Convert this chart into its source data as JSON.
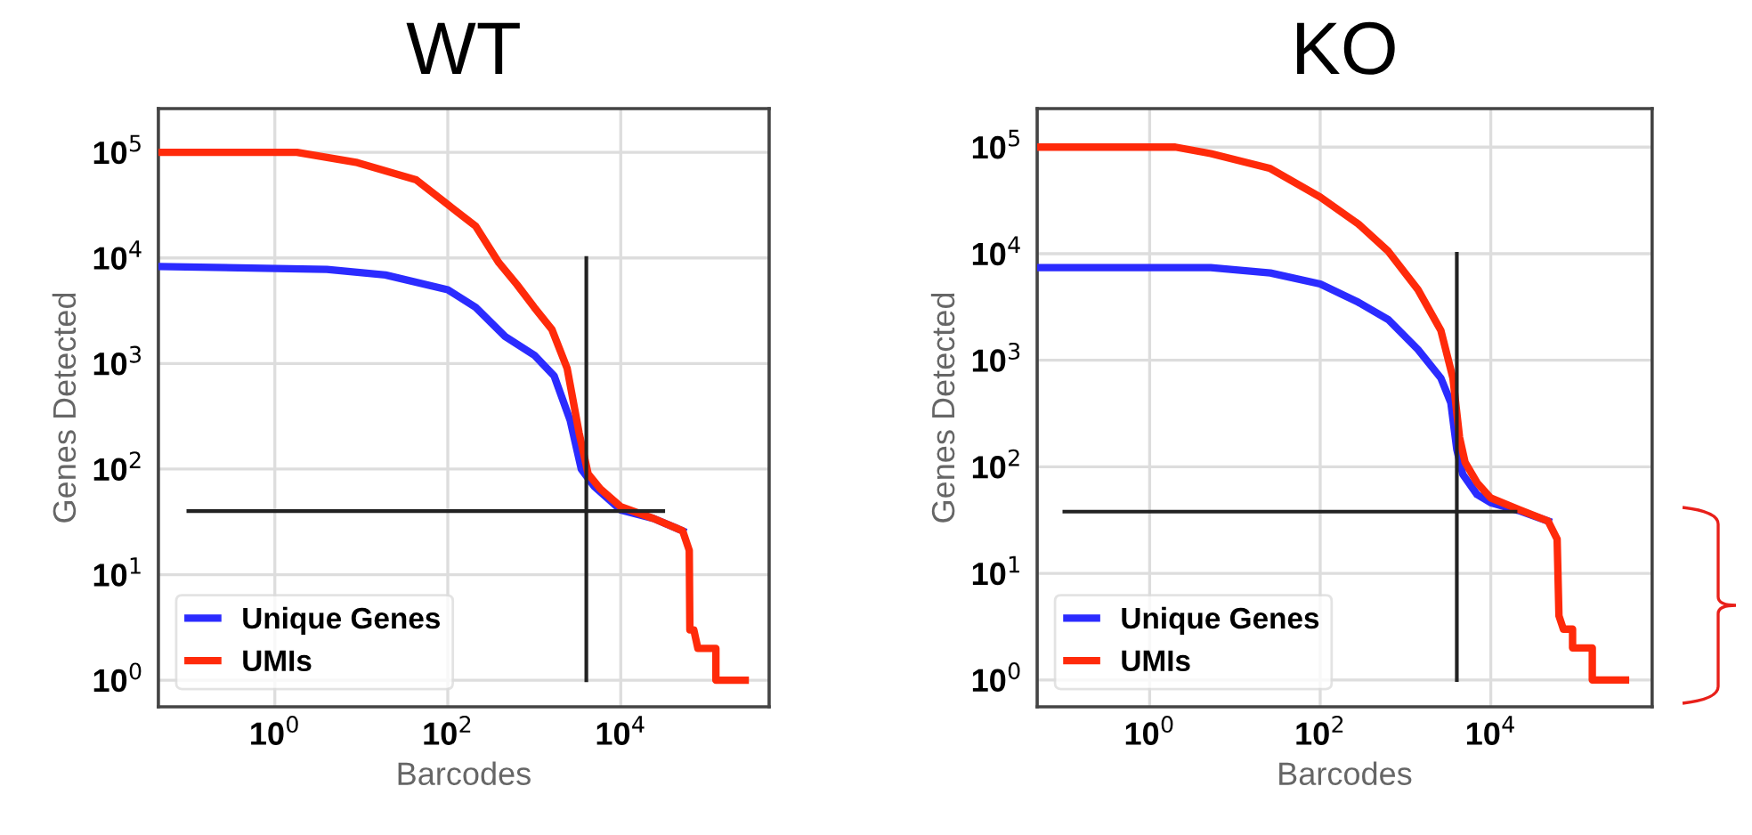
{
  "chart_data": [
    {
      "type": "line",
      "title": "WT",
      "xlabel": "Barcodes",
      "ylabel": "Genes Detected",
      "log": "xy",
      "grid": true,
      "legend": "bottom left",
      "xlim": [
        0.045,
        520000
      ],
      "ylim": [
        0.56,
        260000
      ],
      "xticks": [
        {
          "value": 1,
          "label": "10$^{0}$"
        },
        {
          "value": 100,
          "label": "10$^{2}$"
        },
        {
          "value": 10000,
          "label": "10$^{4}$"
        }
      ],
      "yticks": [
        {
          "value": 1,
          "label": "10$^{0}$"
        },
        {
          "value": 10,
          "label": "10$^{1}$"
        },
        {
          "value": 100,
          "label": "10$^{2}$"
        },
        {
          "value": 1000,
          "label": "10$^{3}$"
        },
        {
          "value": 10000,
          "label": "10$^{4}$"
        },
        {
          "value": 100000,
          "label": "10$^{5}$"
        }
      ],
      "series": [
        {
          "name": "Unique Genes",
          "color": "#2b2bff",
          "x": [
            0.045,
            4,
            19,
            100,
            210,
            460,
            1000,
            1700,
            2600,
            3500,
            4900,
            10000,
            24000,
            52000
          ],
          "values": [
            8300,
            7800,
            6900,
            5000,
            3400,
            1800,
            1200,
            760,
            290,
            100,
            69,
            41,
            34,
            26
          ]
        },
        {
          "name": "UMIs",
          "color": "#ff2a0a",
          "x": [
            0.045,
            1.8,
            9,
            43,
            100,
            210,
            390,
            630,
            1000,
            1600,
            2400,
            3300,
            4200,
            5800,
            10000,
            24000,
            52000,
            62000,
            63000,
            70000,
            78000,
            126000,
            126000,
            275000
          ],
          "values": [
            100000,
            100000,
            80000,
            55000,
            32000,
            20000,
            9000,
            5600,
            3400,
            2100,
            900,
            220,
            90,
            65,
            44,
            34,
            26,
            17,
            3,
            3,
            2,
            2,
            1,
            1
          ]
        },
        {
          "color": "#222222",
          "x": [
            0.1,
            31000
          ],
          "values": [
            40,
            40
          ]
        },
        {
          "color": "#222222",
          "x": [
            4000,
            4000
          ],
          "values": [
            1,
            10000
          ]
        }
      ]
    },
    {
      "type": "line",
      "title": "KO",
      "xlabel": "Barcodes",
      "ylabel": "Genes Detected",
      "log": "xy",
      "grid": true,
      "legend": "bottom left",
      "xlim": [
        0.048,
        780000
      ],
      "ylim": [
        0.56,
        230000
      ],
      "xticks": [
        {
          "value": 1,
          "label": "10$^{0}$"
        },
        {
          "value": 100,
          "label": "10$^{2}$"
        },
        {
          "value": 10000,
          "label": "10$^{4}$"
        }
      ],
      "yticks": [
        {
          "value": 1,
          "label": "10$^{0}$"
        },
        {
          "value": 10,
          "label": "10$^{1}$"
        },
        {
          "value": 100,
          "label": "10$^{2}$"
        },
        {
          "value": 1000,
          "label": "10$^{3}$"
        },
        {
          "value": 10000,
          "label": "10$^{4}$"
        },
        {
          "value": 100000,
          "label": "10$^{5}$"
        }
      ],
      "series": [
        {
          "name": "Unique Genes",
          "color": "#2b2bff",
          "x": [
            0.048,
            5.2,
            26,
            100,
            280,
            630,
            1400,
            2600,
            3400,
            4000,
            4700,
            6900,
            10000,
            21000,
            47000
          ],
          "values": [
            7400,
            7400,
            6600,
            5200,
            3500,
            2400,
            1260,
            680,
            400,
            145,
            85,
            55,
            46,
            39,
            31
          ]
        },
        {
          "name": "UMIs",
          "color": "#ff2a0a",
          "x": [
            0.048,
            2,
            5.2,
            26,
            100,
            280,
            630,
            1400,
            2600,
            3600,
            4300,
            5000,
            6900,
            10000,
            21000,
            47000,
            60000,
            63000,
            71000,
            91000,
            91000,
            155000,
            155000,
            380000
          ],
          "values": [
            100000,
            100000,
            87000,
            63000,
            34000,
            19000,
            10500,
            4600,
            1900,
            680,
            190,
            110,
            71,
            51,
            40,
            31,
            21,
            4,
            3,
            3,
            2,
            2,
            1,
            1
          ]
        },
        {
          "color": "#222222",
          "x": [
            0.1,
            19500
          ],
          "values": [
            38,
            38
          ]
        },
        {
          "color": "#222222",
          "x": [
            4000,
            4000
          ],
          "values": [
            1,
            10000
          ]
        }
      ]
    }
  ]
}
